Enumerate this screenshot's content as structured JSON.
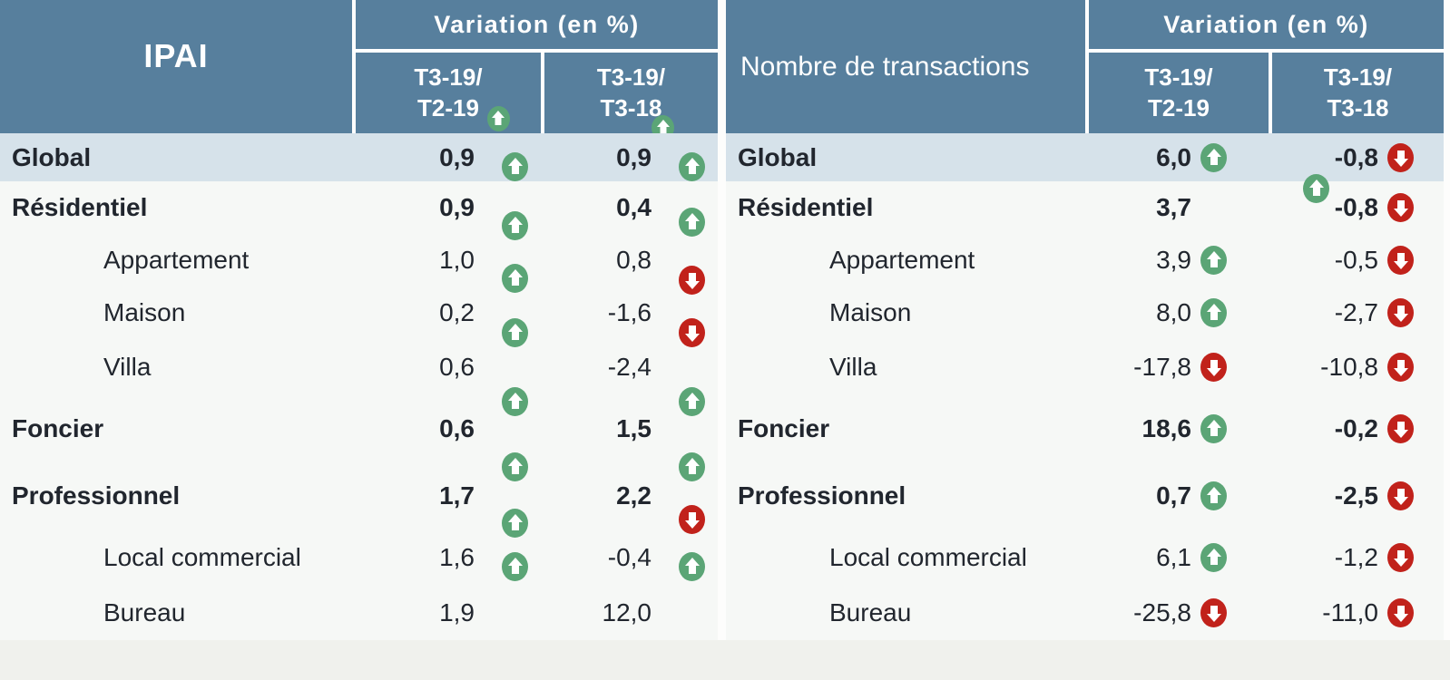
{
  "palette": {
    "header_bg": "#577f9d",
    "header_text": "#ffffff",
    "global_row_bg": "#d6e2ea",
    "body_bg": "#f6f8f6",
    "body_text": "#21262e",
    "up_arrow_color": "#5ba576",
    "down_arrow_color": "#c1221b",
    "footer_strip_bg": "#f0f1ed"
  },
  "left_table": {
    "title": "IPAI",
    "variation_label": "Variation (en %)",
    "col1_line1": "T3-19/",
    "col1_line2": "T2-19",
    "col2_line1": "T3-19/",
    "col2_line2": "T3-18",
    "col1_arrow": "up",
    "col2_arrow": "up",
    "rows": [
      {
        "label": "Global",
        "v1": "0,9",
        "a1": "up",
        "v2": "0,9",
        "a2": "up"
      },
      {
        "label": "Résidentiel",
        "v1": "0,9",
        "a1": "up",
        "v2": "0,4",
        "a2": "up"
      },
      {
        "label": "Appartement",
        "v1": "1,0",
        "a1": "up",
        "v2": "0,8",
        "a2": "down"
      },
      {
        "label": "Maison",
        "v1": "0,2",
        "a1": "up",
        "v2": "-1,6",
        "a2": "down"
      },
      {
        "label": "Villa",
        "v1": "0,6",
        "a1": "up",
        "v2": "-2,4",
        "a2": "up"
      },
      {
        "label": "Foncier",
        "v1": "0,6",
        "a1": "up",
        "v2": "1,5",
        "a2": "up"
      },
      {
        "label": "Professionnel",
        "v1": "1,7",
        "a1": "up",
        "v2": "2,2",
        "a2": "down"
      },
      {
        "label": "Local commercial",
        "v1": "1,6",
        "a1": "up",
        "v2": "-0,4",
        "a2": "up"
      },
      {
        "label": "Bureau",
        "v1": "1,9",
        "a1": "none",
        "v2": "12,0",
        "a2": "none"
      }
    ]
  },
  "right_table": {
    "title": "Nombre de transactions",
    "variation_label": "Variation (en %)",
    "col1_line1": "T3-19/",
    "col1_line2": "T2-19",
    "col2_line1": "T3-19/",
    "col2_line2": "T3-18",
    "col1_arrow": "none",
    "col2_arrow": "none",
    "rows": [
      {
        "label": "Global",
        "v1": "6,0",
        "a1": "up",
        "v2": "-0,8",
        "a2": "down"
      },
      {
        "label": "Résidentiel",
        "v1": "3,7",
        "a1": "none",
        "stray": "up",
        "v2": "-0,8",
        "a2": "down"
      },
      {
        "label": "Appartement",
        "v1": "3,9",
        "a1": "up",
        "v2": "-0,5",
        "a2": "down"
      },
      {
        "label": "Maison",
        "v1": "8,0",
        "a1": "up",
        "v2": "-2,7",
        "a2": "down"
      },
      {
        "label": "Villa",
        "v1": "-17,8",
        "a1": "down",
        "v2": "-10,8",
        "a2": "down"
      },
      {
        "label": "Foncier",
        "v1": "18,6",
        "a1": "up",
        "v2": "-0,2",
        "a2": "down"
      },
      {
        "label": "Professionnel",
        "v1": "0,7",
        "a1": "up",
        "v2": "-2,5",
        "a2": "down"
      },
      {
        "label": "Local commercial",
        "v1": "6,1",
        "a1": "up",
        "v2": "-1,2",
        "a2": "down"
      },
      {
        "label": "Bureau",
        "v1": "-25,8",
        "a1": "down",
        "v2": "-11,0",
        "a2": "down"
      }
    ]
  }
}
